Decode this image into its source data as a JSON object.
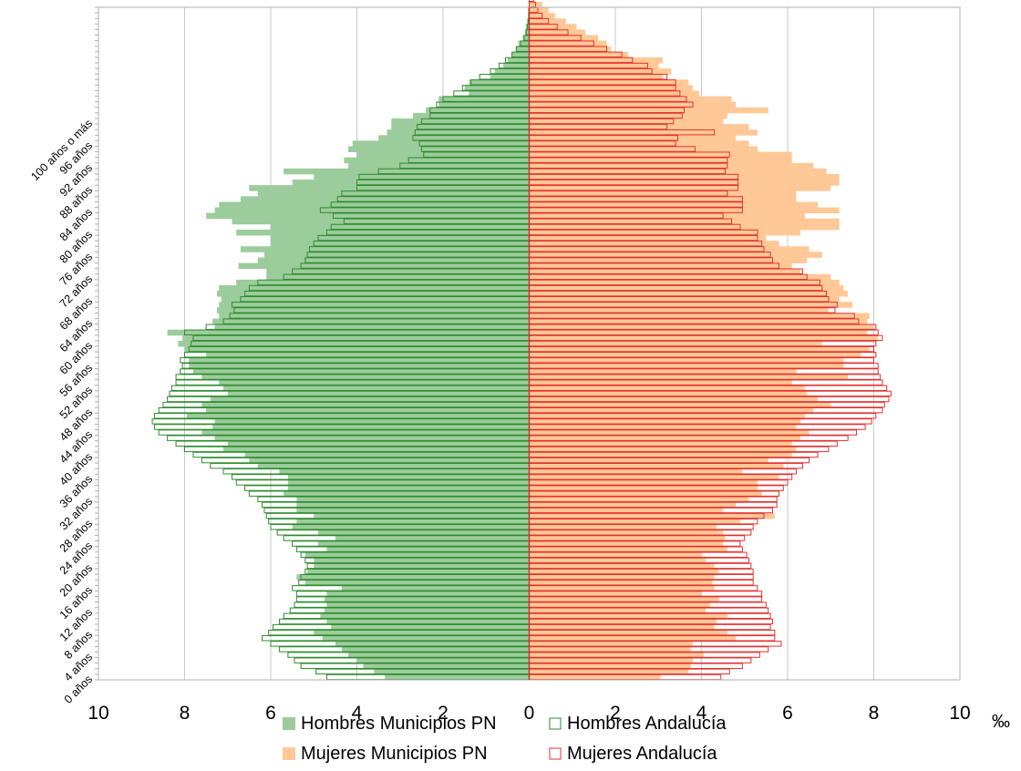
{
  "chart_data": {
    "type": "bar",
    "orientation": "horizontal",
    "subtype": "population-pyramid",
    "unit": "‰",
    "xlim": [
      -10,
      10
    ],
    "x_ticks": [
      "10",
      "8",
      "6",
      "4",
      "2",
      "0",
      "2",
      "4",
      "6",
      "8",
      "10"
    ],
    "grid": "vertical",
    "legend_position": "bottom",
    "age_tick_labels": [
      "0 años",
      "4 años",
      "8 años",
      "12 años",
      "16 años",
      "20 años",
      "24 años",
      "28 años",
      "32 años",
      "36 años",
      "40 años",
      "44 años",
      "48 años",
      "52 años",
      "56 años",
      "60 años",
      "64 años",
      "68 años",
      "72 años",
      "76 años",
      "80 años",
      "84 años",
      "88 años",
      "92 años",
      "96 años",
      "100 años o más"
    ],
    "series": [
      {
        "name": "Hombres Municipios PN",
        "side": "left",
        "style": "filled",
        "color": "#9ccc9c",
        "values": [
          3.35,
          3.6,
          3.85,
          4.0,
          4.2,
          4.35,
          4.5,
          4.8,
          5.0,
          4.6,
          4.7,
          4.85,
          4.75,
          4.7,
          4.75,
          4.7,
          4.35,
          5.2,
          5.4,
          5.15,
          5.0,
          5.0,
          5.2,
          4.7,
          4.9,
          4.5,
          4.9,
          5.5,
          5.4,
          5.0,
          5.4,
          5.4,
          5.4,
          5.7,
          5.6,
          5.6,
          5.6,
          5.8,
          6.3,
          6.5,
          6.6,
          7.1,
          7.0,
          7.3,
          7.6,
          7.35,
          7.3,
          7.95,
          7.5,
          7.6,
          7.4,
          7.0,
          7.1,
          7.2,
          7.6,
          7.8,
          7.9,
          7.9,
          7.5,
          8.0,
          8.15,
          8.05,
          8.4,
          7.3,
          7.35,
          7.2,
          7.25,
          7.2,
          7.15,
          7.25,
          7.2,
          6.8,
          6.1,
          6.1,
          6.75,
          6.3,
          6.15,
          6.7,
          6.0,
          6.0,
          6.8,
          6.0,
          6.9,
          7.5,
          7.3,
          7.2,
          6.7,
          6.3,
          6.5,
          5.5,
          5.0,
          5.7,
          4.2,
          4.3,
          4.0,
          4.2,
          4.1,
          3.5,
          3.3,
          3.2,
          3.2,
          2.7,
          2.4,
          2.1,
          2.1,
          1.4,
          1.5,
          1.4,
          0.9,
          0.8,
          0.6,
          0.5,
          0.4,
          0.3,
          0.25,
          0.15,
          0.1,
          0.08,
          0.05,
          0.03,
          0.02
        ]
      },
      {
        "name": "Hombres Andalucía",
        "side": "left",
        "style": "outline",
        "color": "#2e8b2e",
        "values": [
          4.7,
          4.95,
          5.3,
          5.45,
          5.6,
          5.8,
          6.0,
          6.2,
          6.05,
          5.95,
          5.8,
          5.7,
          5.55,
          5.45,
          5.4,
          5.4,
          5.5,
          5.35,
          5.3,
          5.2,
          5.15,
          5.2,
          5.3,
          5.4,
          5.5,
          5.7,
          5.85,
          6.0,
          6.05,
          6.1,
          6.15,
          6.2,
          6.3,
          6.5,
          6.6,
          6.8,
          6.9,
          7.1,
          7.4,
          7.6,
          7.8,
          8.0,
          8.2,
          8.4,
          8.6,
          8.7,
          8.75,
          8.7,
          8.6,
          8.5,
          8.4,
          8.35,
          8.3,
          8.2,
          8.2,
          8.1,
          8.05,
          8.1,
          8.0,
          7.9,
          7.85,
          7.8,
          8.0,
          7.5,
          7.1,
          6.95,
          6.85,
          6.9,
          6.7,
          6.6,
          6.5,
          6.3,
          5.7,
          5.5,
          5.3,
          5.2,
          5.15,
          5.1,
          5.0,
          4.9,
          4.7,
          4.6,
          4.3,
          4.55,
          4.85,
          4.6,
          4.45,
          4.35,
          4.0,
          4.0,
          3.95,
          3.5,
          3.0,
          2.8,
          2.45,
          2.5,
          2.55,
          2.7,
          2.65,
          2.6,
          2.5,
          2.3,
          2.3,
          2.15,
          2.0,
          1.75,
          1.55,
          1.35,
          1.15,
          0.9,
          0.7,
          0.55,
          0.4,
          0.3,
          0.2,
          0.12,
          0.07,
          0.04,
          0.02,
          0.01,
          0.01
        ]
      },
      {
        "name": "Mujeres Municipios PN",
        "side": "right",
        "style": "filled",
        "color": "#ffc896",
        "values": [
          3.05,
          3.7,
          3.75,
          3.8,
          4.05,
          3.75,
          3.8,
          4.8,
          4.6,
          4.3,
          4.35,
          4.6,
          4.1,
          4.2,
          4.4,
          4.0,
          4.3,
          4.25,
          4.3,
          4.4,
          4.3,
          4.1,
          4.0,
          4.6,
          4.5,
          4.55,
          4.5,
          4.35,
          4.9,
          5.7,
          4.5,
          4.8,
          5.1,
          5.4,
          5.3,
          5.3,
          5.8,
          4.95,
          5.9,
          5.55,
          6.1,
          6.2,
          6.1,
          6.3,
          6.5,
          6.2,
          6.3,
          6.4,
          6.6,
          7.0,
          6.7,
          6.45,
          6.4,
          6.1,
          7.4,
          6.2,
          7.3,
          7.3,
          7.7,
          7.9,
          6.8,
          8.1,
          7.85,
          8.0,
          7.85,
          7.9,
          6.95,
          7.5,
          7.2,
          7.4,
          7.3,
          7.2,
          7.0,
          6.3,
          6.1,
          6.45,
          6.8,
          6.5,
          5.8,
          5.5,
          6.3,
          7.2,
          7.2,
          6.4,
          7.2,
          6.7,
          6.2,
          6.2,
          7.0,
          7.2,
          7.2,
          6.9,
          6.6,
          6.1,
          6.1,
          5.3,
          5.1,
          4.8,
          5.3,
          5.1,
          4.5,
          4.6,
          5.55,
          4.8,
          4.7,
          3.95,
          3.8,
          3.7,
          3.1,
          3.3,
          3.0,
          3.1,
          2.3,
          1.9,
          1.8,
          1.6,
          1.3,
          1.1,
          0.85,
          0.6,
          0.45,
          0.3
        ]
      },
      {
        "name": "Mujeres Andalucía",
        "side": "right",
        "style": "outline",
        "color": "#e33030",
        "values": [
          4.45,
          4.65,
          4.95,
          5.15,
          5.35,
          5.55,
          5.85,
          5.7,
          5.7,
          5.6,
          5.65,
          5.6,
          5.55,
          5.5,
          5.4,
          5.4,
          5.3,
          5.2,
          5.2,
          5.2,
          5.15,
          5.1,
          5.05,
          4.95,
          4.9,
          5.0,
          5.15,
          5.2,
          5.3,
          5.45,
          5.65,
          5.75,
          5.75,
          5.8,
          5.9,
          6.0,
          6.1,
          6.2,
          6.35,
          6.5,
          6.7,
          6.95,
          7.15,
          7.4,
          7.6,
          7.8,
          7.95,
          8.05,
          8.2,
          8.25,
          8.35,
          8.4,
          8.3,
          8.2,
          8.15,
          8.1,
          8.1,
          8.0,
          8.05,
          8.0,
          8.05,
          8.2,
          8.1,
          8.05,
          7.65,
          7.55,
          7.1,
          7.15,
          6.95,
          6.9,
          6.8,
          6.75,
          6.45,
          6.35,
          5.8,
          5.65,
          5.6,
          5.45,
          5.4,
          5.3,
          5.3,
          4.9,
          4.7,
          4.5,
          4.95,
          4.95,
          4.95,
          4.6,
          4.85,
          4.85,
          4.85,
          4.55,
          4.6,
          4.6,
          4.65,
          3.85,
          3.4,
          3.45,
          4.3,
          3.2,
          3.35,
          3.55,
          3.6,
          3.8,
          3.65,
          3.5,
          3.4,
          3.4,
          3.2,
          2.85,
          2.75,
          2.4,
          2.15,
          1.8,
          1.5,
          1.2,
          0.9,
          0.65,
          0.45,
          0.3,
          0.2,
          0.15,
          0.1
        ]
      }
    ]
  }
}
